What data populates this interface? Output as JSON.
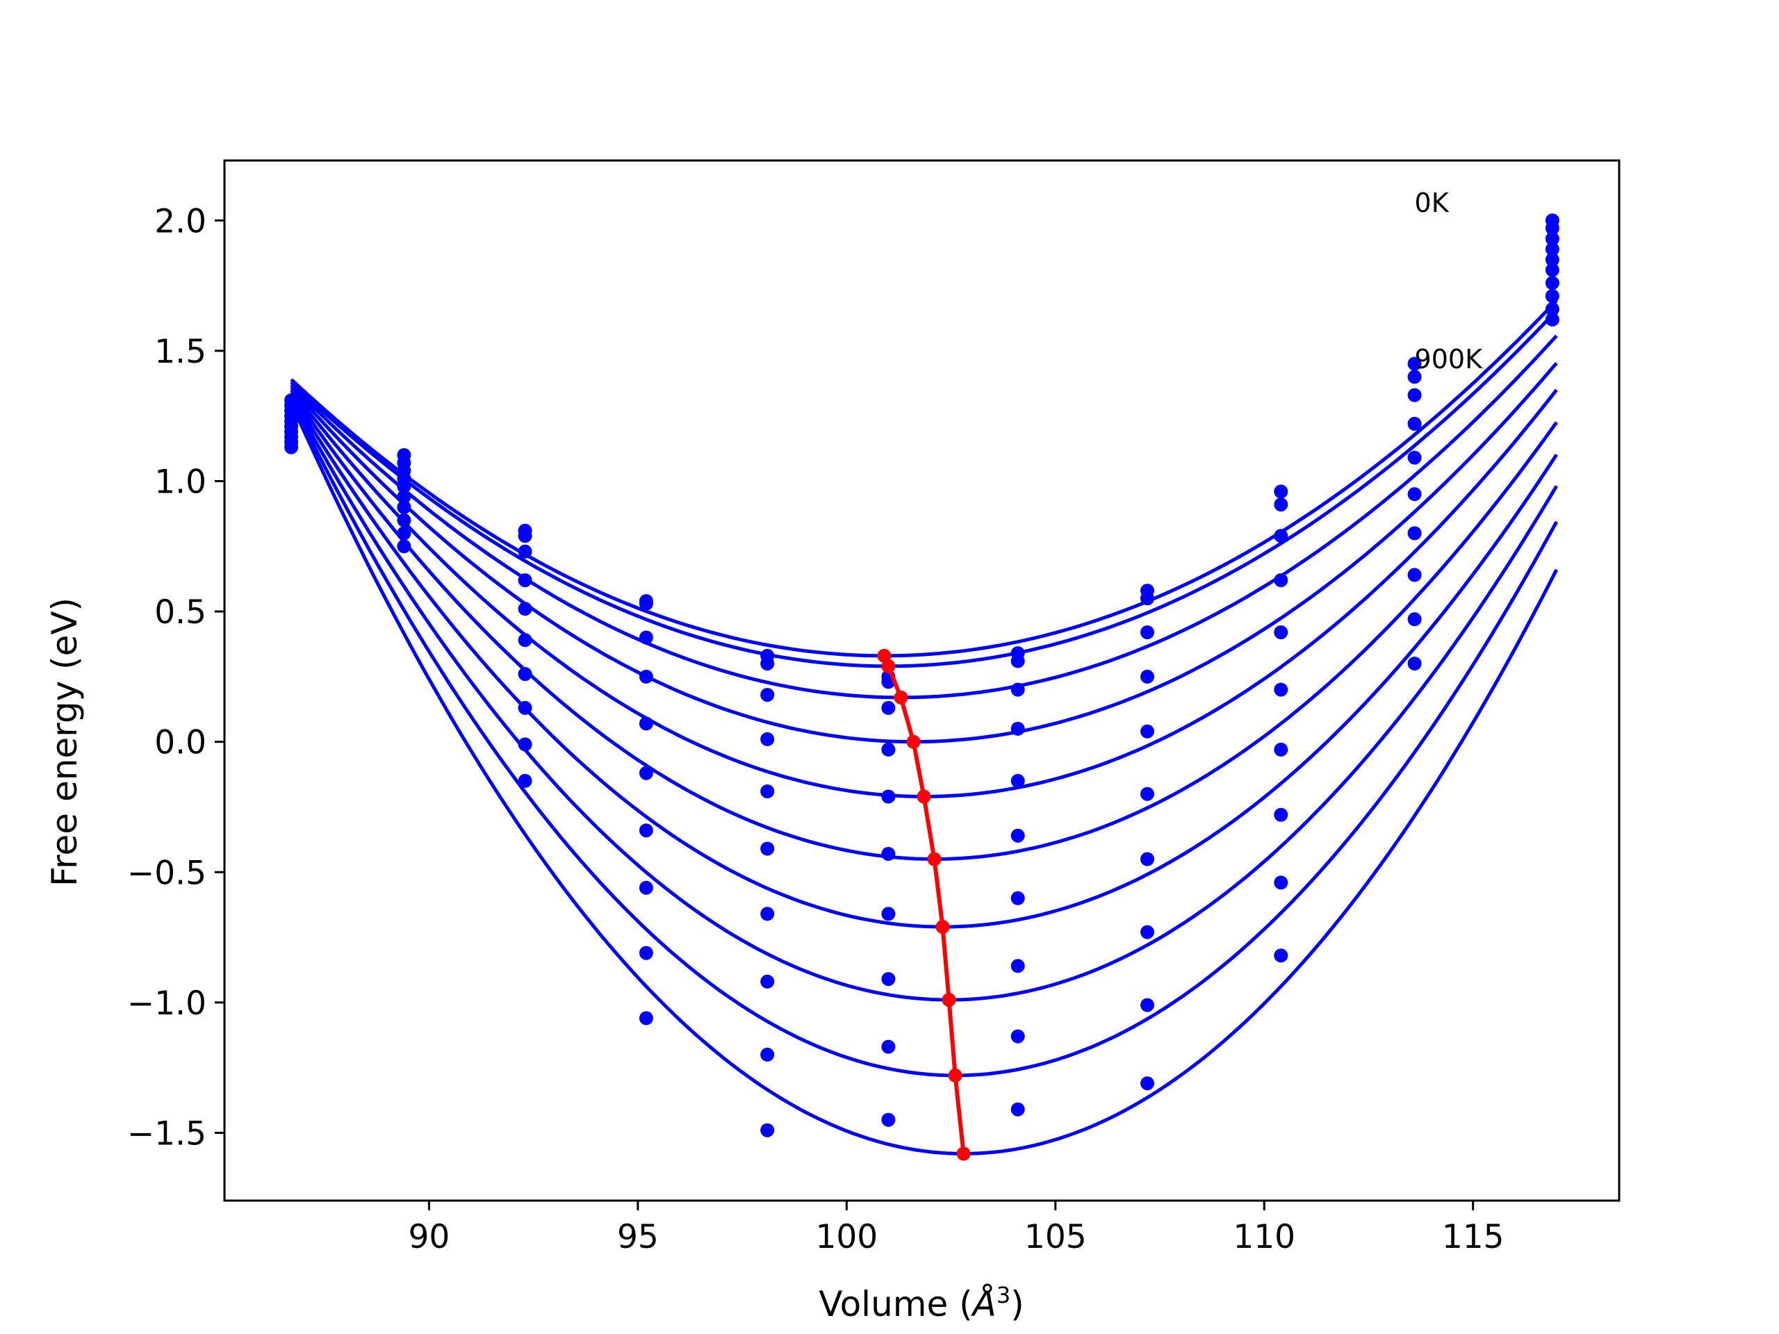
{
  "chart_data": {
    "type": "line",
    "title": "",
    "xlabel_prefix": "Volume (",
    "xlabel_var": "Å",
    "xlabel_sup": "3",
    "xlabel_suffix": ")",
    "ylabel": "Free energy (eV)",
    "xlim": [
      85.1,
      118.5
    ],
    "ylim": [
      -1.76,
      2.23
    ],
    "xticks": [
      90,
      95,
      100,
      105,
      110,
      115
    ],
    "xtick_labels": [
      "90",
      "95",
      "100",
      "105",
      "110",
      "115"
    ],
    "yticks": [
      2.0,
      1.5,
      1.0,
      0.5,
      0.0,
      -0.5,
      -1.0,
      -1.5
    ],
    "ytick_labels": [
      "2.0",
      "1.5",
      "1.0",
      "0.5",
      "0.0",
      "−0.5",
      "−1.0",
      "−1.5"
    ],
    "grid": false,
    "annotations": [
      {
        "text": "0K",
        "x": 113.6,
        "y": 2.07
      },
      {
        "text": "900K",
        "x": 113.6,
        "y": 1.47
      }
    ],
    "volumes": [
      86.7,
      89.4,
      92.3,
      95.2,
      98.1,
      101.0,
      104.1,
      107.2,
      110.4,
      113.6,
      116.9
    ],
    "data_points": [
      [
        1.13,
        0.75,
        0.79,
        0.53,
        0.33,
        0.25,
        0.34,
        0.58,
        0.96,
        1.45,
        2.0
      ],
      [
        1.15,
        0.8,
        0.81,
        0.54,
        0.3,
        0.23,
        0.31,
        0.55,
        0.91,
        1.4,
        1.97
      ],
      [
        1.17,
        0.85,
        0.73,
        0.4,
        0.18,
        0.13,
        0.2,
        0.42,
        0.79,
        1.33,
        1.93
      ],
      [
        1.19,
        0.9,
        0.62,
        0.25,
        0.01,
        -0.03,
        0.05,
        0.25,
        0.62,
        1.22,
        1.89
      ],
      [
        1.21,
        0.94,
        0.51,
        0.07,
        -0.19,
        -0.21,
        -0.15,
        0.04,
        0.42,
        1.09,
        1.85
      ],
      [
        1.23,
        0.98,
        0.39,
        -0.12,
        -0.41,
        -0.43,
        -0.36,
        -0.2,
        0.2,
        0.95,
        1.81
      ],
      [
        1.25,
        1.01,
        0.26,
        -0.34,
        -0.66,
        -0.66,
        -0.6,
        -0.45,
        -0.03,
        0.8,
        1.76
      ],
      [
        1.27,
        1.04,
        0.13,
        -0.56,
        -0.92,
        -0.91,
        -0.86,
        -0.73,
        -0.28,
        0.64,
        1.71
      ],
      [
        1.29,
        1.07,
        -0.01,
        -0.81,
        -1.2,
        -1.17,
        -1.13,
        -1.01,
        -0.54,
        0.47,
        1.66
      ],
      [
        1.31,
        1.1,
        -0.15,
        -1.06,
        -1.49,
        -1.45,
        -1.41,
        -1.31,
        -0.82,
        0.3,
        1.62
      ]
    ],
    "fit_minima": {
      "v0": [
        100.9,
        101.0,
        101.3,
        101.6,
        101.85,
        102.1,
        102.3,
        102.45,
        102.6,
        102.8
      ],
      "fmin": [
        0.33,
        0.29,
        0.17,
        0.0,
        -0.21,
        -0.45,
        -0.71,
        -0.99,
        -1.28,
        -1.58
      ]
    },
    "fit_range": [
      86.7,
      117.0
    ],
    "fit_start": [
      1.39,
      1.38,
      1.37,
      1.36,
      1.35,
      1.34,
      1.33,
      1.32,
      1.31,
      1.3
    ],
    "colors": {
      "curves": "#0000ff",
      "minima": "#ff0000",
      "axes": "#000000"
    }
  }
}
